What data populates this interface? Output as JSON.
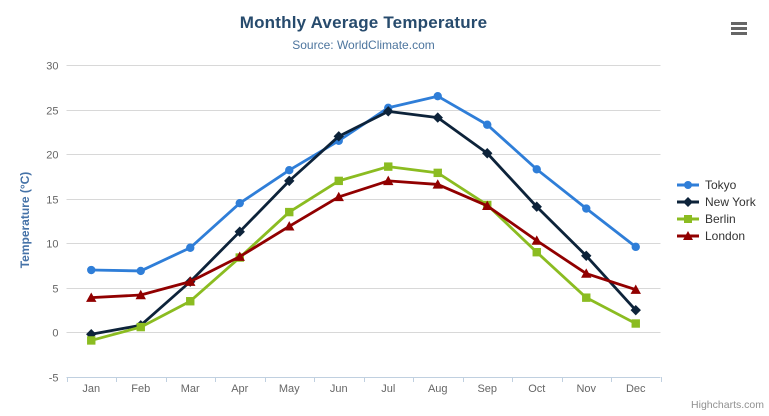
{
  "chart": {
    "credit": "Highcharts.com"
  },
  "chart_data": {
    "type": "line",
    "title": "Monthly Average Temperature",
    "subtitle": "Source: WorldClimate.com",
    "xlabel": "",
    "ylabel": "Temperature (°C)",
    "ylim": [
      -5,
      30
    ],
    "ytick_step": 5,
    "grid": true,
    "legend_position": "right",
    "categories": [
      "Jan",
      "Feb",
      "Mar",
      "Apr",
      "May",
      "Jun",
      "Jul",
      "Aug",
      "Sep",
      "Oct",
      "Nov",
      "Dec"
    ],
    "series": [
      {
        "name": "Tokyo",
        "color": "#2f7ed8",
        "marker": "circle",
        "values": [
          7.0,
          6.9,
          9.5,
          14.5,
          18.2,
          21.5,
          25.2,
          26.5,
          23.3,
          18.3,
          13.9,
          9.6
        ]
      },
      {
        "name": "New York",
        "color": "#0d233a",
        "marker": "diamond",
        "values": [
          -0.2,
          0.8,
          5.7,
          11.3,
          17.0,
          22.0,
          24.8,
          24.1,
          20.1,
          14.1,
          8.6,
          2.5
        ]
      },
      {
        "name": "Berlin",
        "color": "#8bbc21",
        "marker": "square",
        "values": [
          -0.9,
          0.6,
          3.5,
          8.4,
          13.5,
          17.0,
          18.6,
          17.9,
          14.3,
          9.0,
          3.9,
          1.0
        ]
      },
      {
        "name": "London",
        "color": "#910000",
        "marker": "triangle",
        "values": [
          3.9,
          4.2,
          5.7,
          8.5,
          11.9,
          15.2,
          17.0,
          16.6,
          14.2,
          10.3,
          6.6,
          4.8
        ]
      }
    ]
  },
  "theme": {
    "title_color": "#274b6d",
    "subtitle_color": "#4d759e",
    "y_title_color": "#4572a7",
    "axis_label_color": "#666666",
    "grid_color": "#d8d8d8",
    "axis_line_color": "#c0d0e0",
    "legend_text_color": "#333333",
    "credit_color": "#909090",
    "menu_icon_color": "#666666"
  }
}
